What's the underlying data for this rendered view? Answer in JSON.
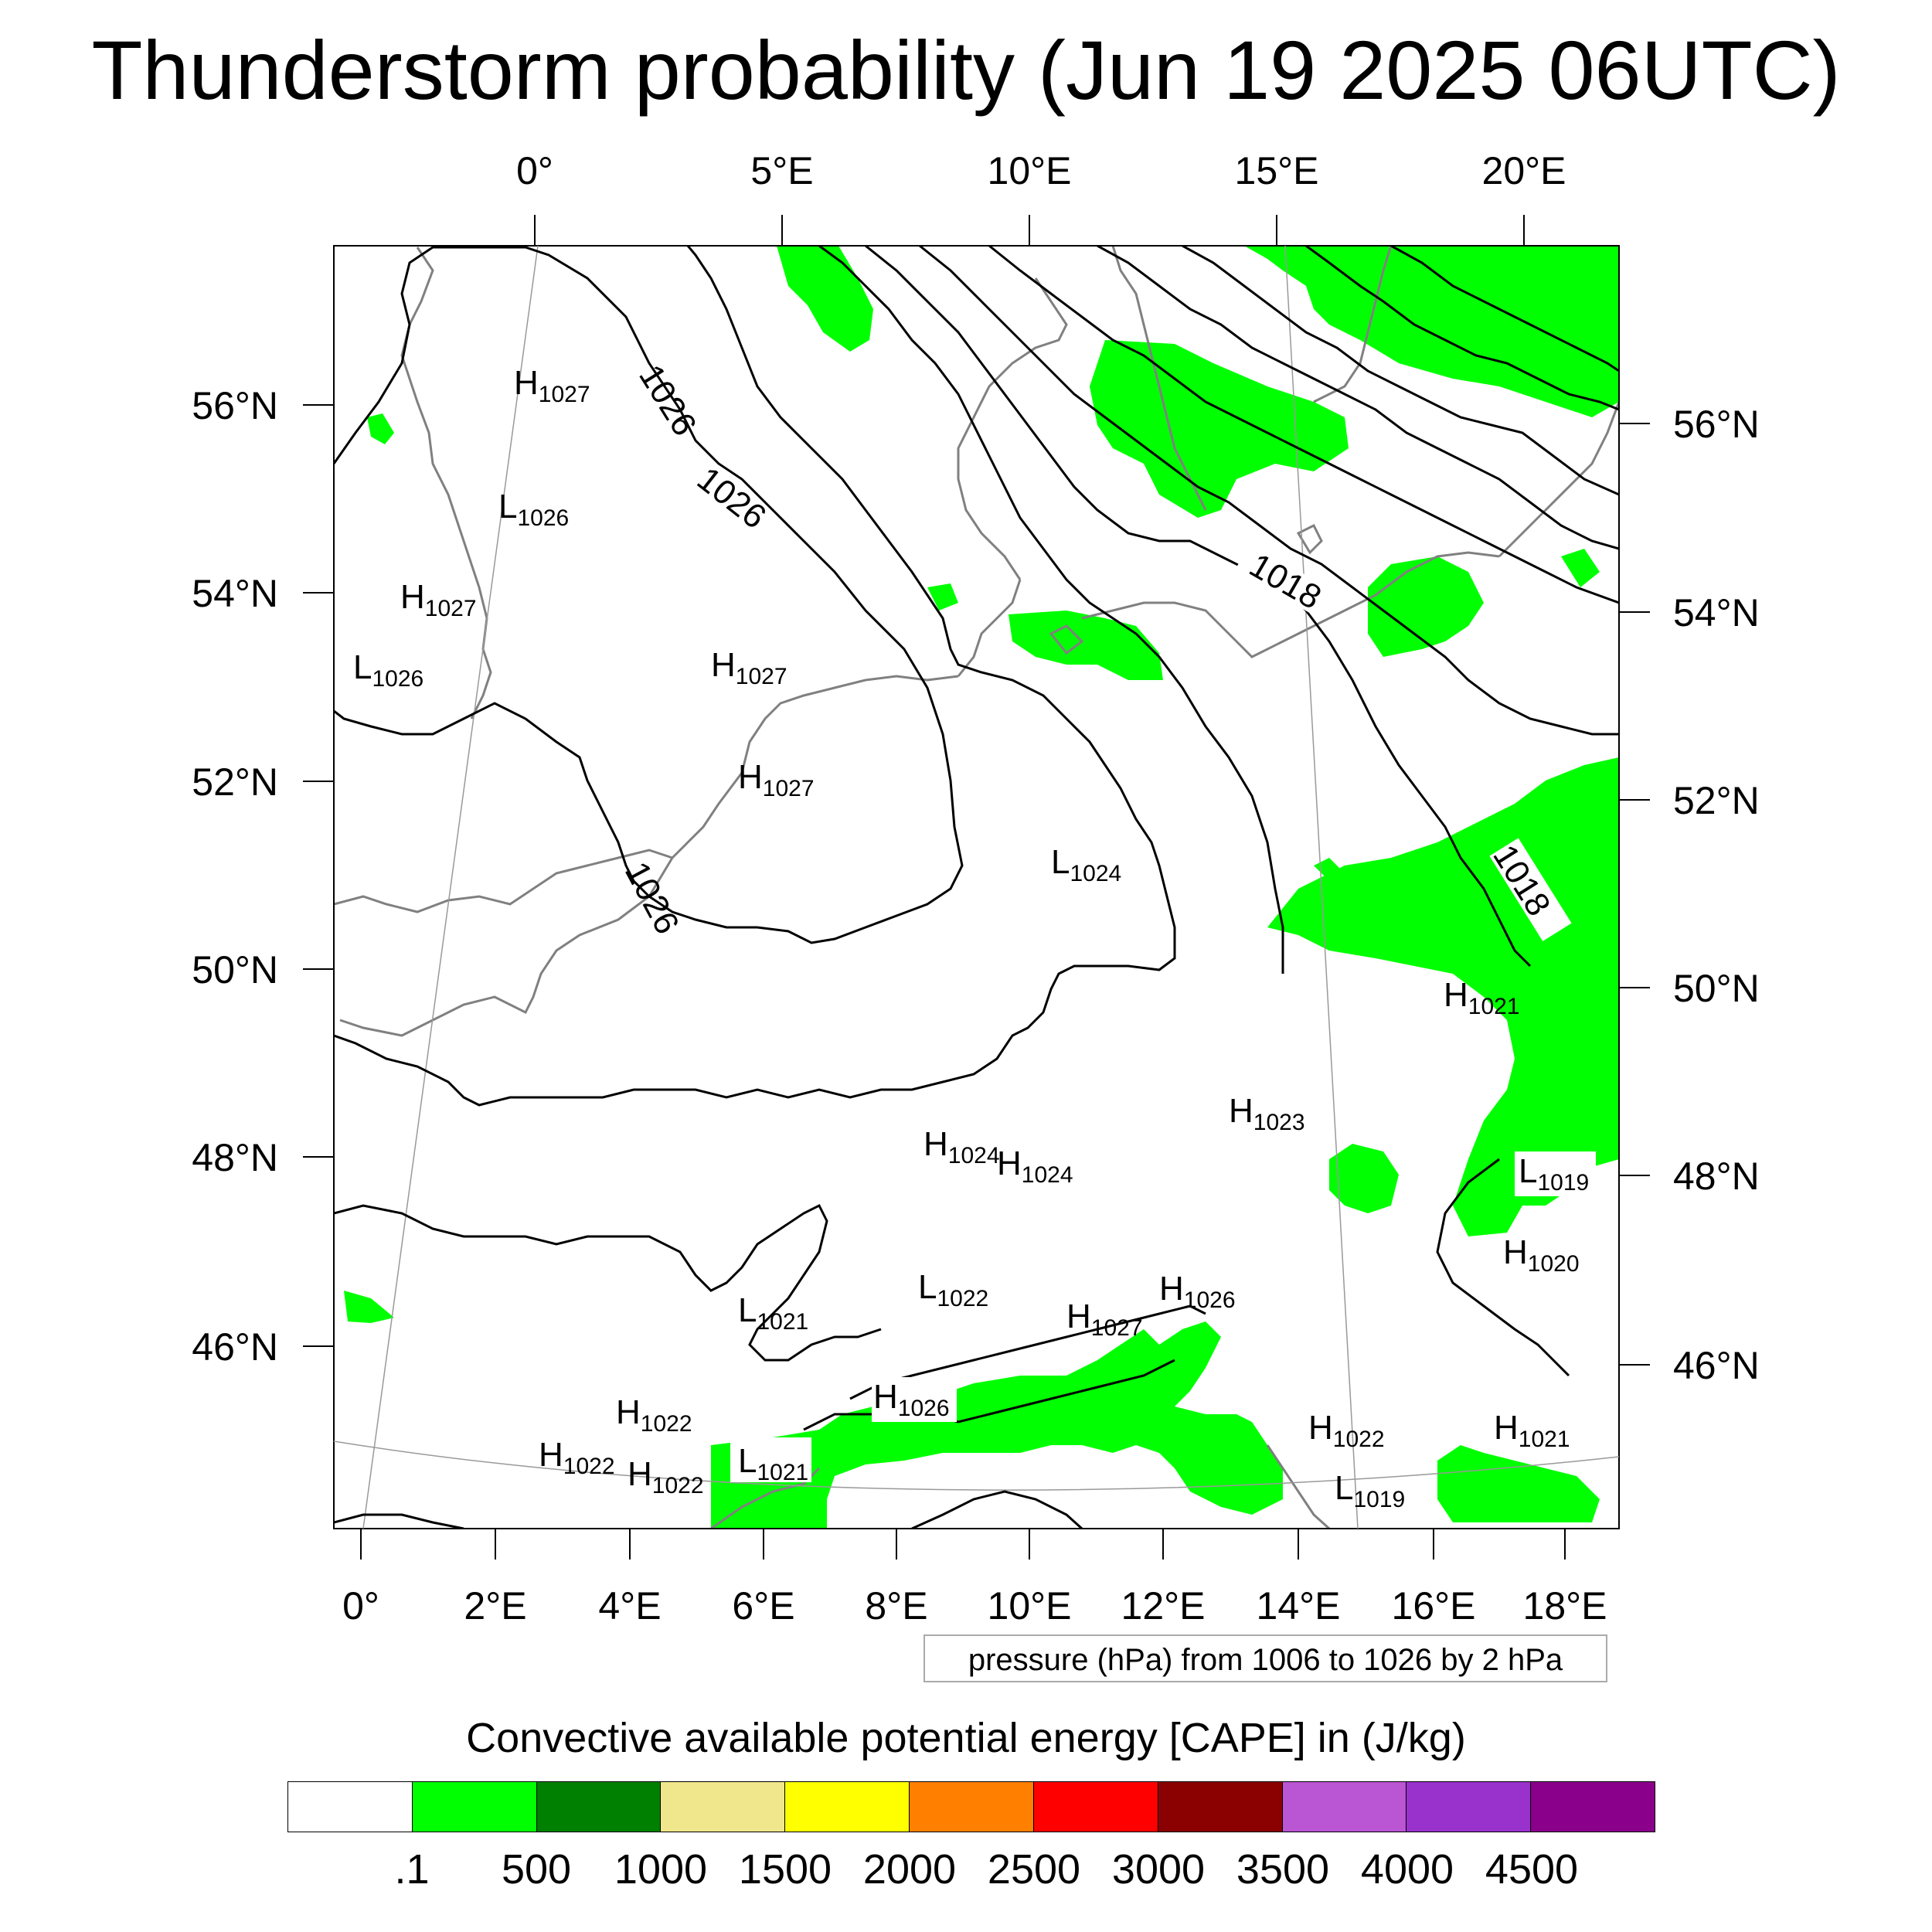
{
  "title": "Thunderstorm probability (Jun 19 2025 06UTC)",
  "map": {
    "top_lon_labels": [
      "0°",
      "5°E",
      "10°E",
      "15°E",
      "20°E"
    ],
    "bottom_lon_labels": [
      "0°",
      "2°E",
      "4°E",
      "6°E",
      "8°E",
      "10°E",
      "12°E",
      "14°E",
      "16°E",
      "18°E"
    ],
    "left_lat_labels": [
      "56°N",
      "54°N",
      "52°N",
      "50°N",
      "48°N",
      "46°N"
    ],
    "right_lat_labels": [
      "56°N",
      "54°N",
      "52°N",
      "50°N",
      "48°N",
      "46°N"
    ],
    "contour_labels": [
      "1026",
      "1026",
      "1026",
      "1018",
      "1018"
    ],
    "pressure_centers": [
      {
        "type": "H",
        "value": "1027"
      },
      {
        "type": "L",
        "value": "1026"
      },
      {
        "type": "H",
        "value": "1027"
      },
      {
        "type": "L",
        "value": "1026"
      },
      {
        "type": "H",
        "value": "1027"
      },
      {
        "type": "H",
        "value": "1027"
      },
      {
        "type": "L",
        "value": "1024"
      },
      {
        "type": "H",
        "value": "1021"
      },
      {
        "type": "H",
        "value": "1023"
      },
      {
        "type": "H",
        "value": "1024"
      },
      {
        "type": "H",
        "value": "1024"
      },
      {
        "type": "L",
        "value": "1019"
      },
      {
        "type": "H",
        "value": "1020"
      },
      {
        "type": "L",
        "value": "1022"
      },
      {
        "type": "L",
        "value": "1021"
      },
      {
        "type": "H",
        "value": "1026"
      },
      {
        "type": "H",
        "value": "1027"
      },
      {
        "type": "H",
        "value": "1026"
      },
      {
        "type": "H",
        "value": "1022"
      },
      {
        "type": "H",
        "value": "1022"
      },
      {
        "type": "H",
        "value": "1022"
      },
      {
        "type": "L",
        "value": "1021"
      },
      {
        "type": "H",
        "value": "1022"
      },
      {
        "type": "L",
        "value": "1019"
      },
      {
        "type": "H",
        "value": "1021"
      }
    ],
    "colors": {
      "cape_green": "#00ff00",
      "coastline": "#808080",
      "isobar": "#000000"
    }
  },
  "contour_info": "pressure (hPa) from 1006 to 1026 by 2 hPa",
  "colorbar": {
    "title": "Convective available potential energy [CAPE] in (J/kg)",
    "colors": [
      "#ffffff",
      "#00ff00",
      "#008000",
      "#f0e68c",
      "#ffff00",
      "#ff8000",
      "#ff0000",
      "#8b0000",
      "#ba55d3",
      "#9932cc",
      "#8b008b"
    ],
    "labels": [
      ".1",
      "500",
      "1000",
      "1500",
      "2000",
      "2500",
      "3000",
      "3500",
      "4000",
      "4500"
    ]
  }
}
